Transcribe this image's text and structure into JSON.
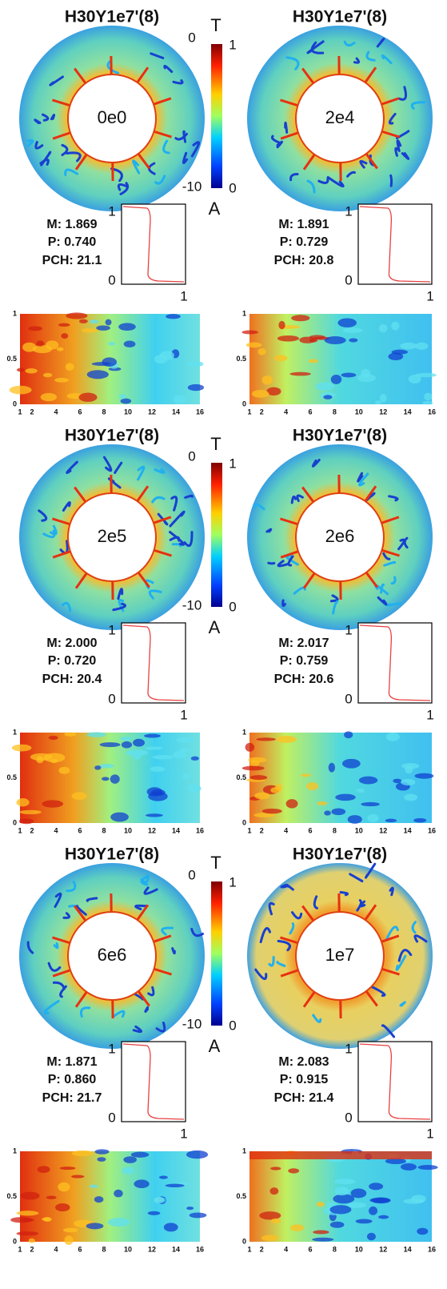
{
  "panels": [
    {
      "title": "H30Y1e7'(8)",
      "label": "0e0",
      "stats": {
        "m": "M: 1.869",
        "p": "P: 0.740",
        "pch": "PCH: 21.1"
      }
    },
    {
      "title": "H30Y1e7'(8)",
      "label": "2e4",
      "stats": {
        "m": "M: 1.891",
        "p": "P: 0.729",
        "pch": "PCH: 20.8"
      }
    },
    {
      "title": "H30Y1e7'(8)",
      "label": "2e5",
      "stats": {
        "m": "M: 2.000",
        "p": "P: 0.720",
        "pch": "PCH: 20.4"
      }
    },
    {
      "title": "H30Y1e7'(8)",
      "label": "2e6",
      "stats": {
        "m": "M: 2.017",
        "p": "P: 0.759",
        "pch": "PCH: 20.6"
      }
    },
    {
      "title": "H30Y1e7'(8)",
      "label": "6e6",
      "stats": {
        "m": "M: 1.871",
        "p": "P: 0.860",
        "pch": "PCH: 21.7"
      }
    },
    {
      "title": "H30Y1e7'(8)",
      "label": "1e7",
      "stats": {
        "m": "M: 2.083",
        "p": "P: 0.915",
        "pch": "PCH: 21.4"
      }
    }
  ],
  "colorbar": {
    "t_label": "T",
    "t_max": "1",
    "t_min": "0",
    "a_label": "A",
    "a_max": "0",
    "a_min": "-10"
  },
  "profile_axis": {
    "y_top": "1",
    "y_bottom": "0",
    "x_right": "1"
  },
  "heatmap_axis": {
    "x_ticks": [
      "1",
      "2",
      "4",
      "6",
      "8",
      "10",
      "12",
      "14",
      "16"
    ],
    "y_ticks": [
      "0",
      "0.5",
      "1"
    ]
  }
}
